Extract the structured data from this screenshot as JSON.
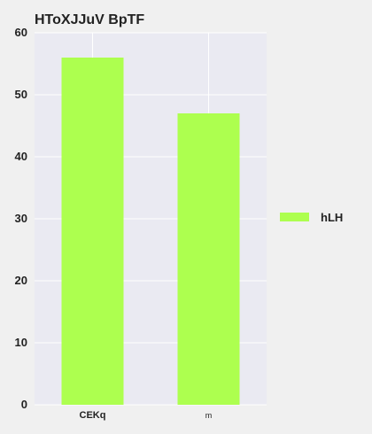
{
  "chart_data": {
    "type": "bar",
    "title": "HToXJJuV BpTF",
    "categories": [
      "CEKq",
      "m"
    ],
    "series": [
      {
        "name": "hLH",
        "values": [
          56,
          47
        ],
        "color": "#adff4f"
      }
    ],
    "xlabel": "",
    "ylabel": "",
    "ylim": [
      0,
      60
    ],
    "yticks": [
      0,
      10,
      20,
      30,
      40,
      50,
      60
    ],
    "ytick_labels": [
      "0",
      "10",
      "20",
      "30",
      "40",
      "50",
      "60"
    ],
    "grid": true,
    "legend_position": "right",
    "colors": {
      "plot_background": "#eaeaf2",
      "page_background": "#f0f0f0",
      "grid": "#ffffff",
      "text": "#222222"
    }
  }
}
